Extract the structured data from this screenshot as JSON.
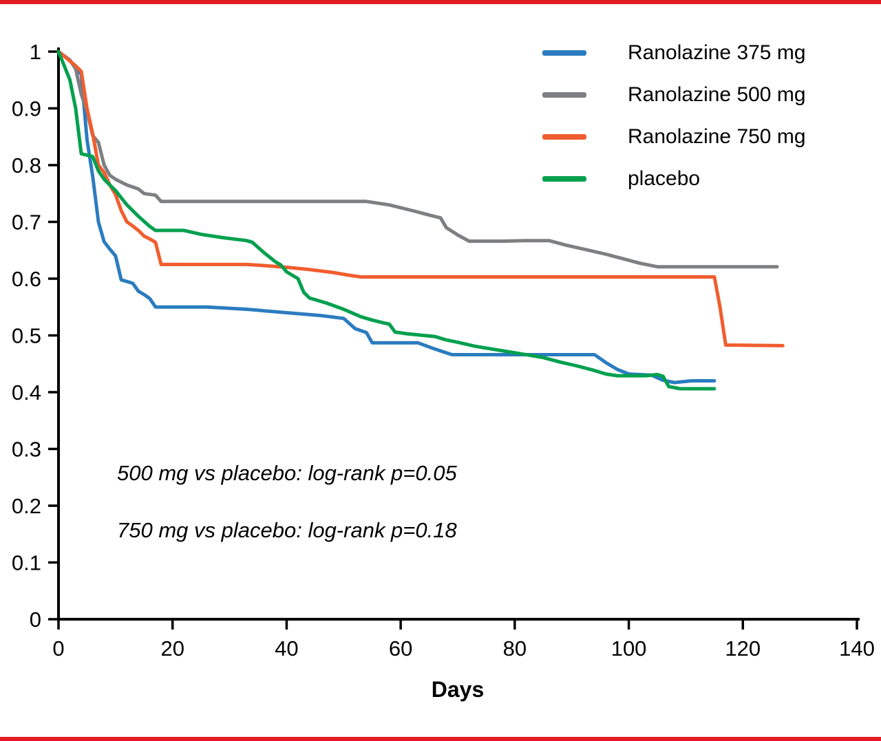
{
  "page": {
    "background": "#ffffff",
    "border_color": "#e31b23"
  },
  "chart_data": {
    "type": "line",
    "subtype": "kaplan-meier-survival-curves",
    "title": "",
    "xlabel": "Days",
    "ylabel": "",
    "xlim": [
      0,
      140
    ],
    "ylim": [
      0,
      1
    ],
    "grid": false,
    "legend_position": "top-right",
    "x_ticks": [
      0,
      20,
      40,
      60,
      80,
      100,
      120,
      140
    ],
    "x_tick_labels": [
      "0",
      "20",
      "40",
      "60",
      "80",
      "100",
      "120",
      "140"
    ],
    "y_ticks": [
      0,
      0.1,
      0.2,
      0.3,
      0.4,
      0.5,
      0.6,
      0.7,
      0.8,
      0.9,
      1
    ],
    "y_tick_labels": [
      "0",
      "0.1",
      "0.2",
      "0.3",
      "0.4",
      "0.5",
      "0.6",
      "0.7",
      "0.8",
      "0.9",
      "1"
    ],
    "axis_color": "#000000",
    "series": [
      {
        "name": "Ranolazine 375 mg",
        "color": "#2b7cbf",
        "points": [
          [
            0,
            1
          ],
          [
            2,
            0.985
          ],
          [
            3,
            0.97
          ],
          [
            4,
            0.96
          ],
          [
            5,
            0.845
          ],
          [
            6,
            0.78
          ],
          [
            7,
            0.7
          ],
          [
            8,
            0.665
          ],
          [
            9,
            0.652
          ],
          [
            10,
            0.64
          ],
          [
            11,
            0.598
          ],
          [
            13,
            0.592
          ],
          [
            14,
            0.578
          ],
          [
            15,
            0.572
          ],
          [
            16,
            0.565
          ],
          [
            17,
            0.55
          ],
          [
            26,
            0.55
          ],
          [
            33,
            0.546
          ],
          [
            40,
            0.54
          ],
          [
            46,
            0.535
          ],
          [
            50,
            0.53
          ],
          [
            52,
            0.512
          ],
          [
            54,
            0.505
          ],
          [
            55,
            0.487
          ],
          [
            63,
            0.487
          ],
          [
            66,
            0.476
          ],
          [
            69,
            0.466
          ],
          [
            80,
            0.466
          ],
          [
            94,
            0.466
          ],
          [
            96,
            0.452
          ],
          [
            98,
            0.44
          ],
          [
            100,
            0.432
          ],
          [
            104,
            0.43
          ],
          [
            106,
            0.421
          ],
          [
            108,
            0.417
          ],
          [
            111,
            0.42
          ],
          [
            115,
            0.42
          ]
        ]
      },
      {
        "name": "Ranolazine 500 mg",
        "color": "#7e7f83",
        "points": [
          [
            0,
            1
          ],
          [
            2,
            0.985
          ],
          [
            3,
            0.97
          ],
          [
            4,
            0.925
          ],
          [
            5,
            0.895
          ],
          [
            6,
            0.852
          ],
          [
            7,
            0.84
          ],
          [
            8,
            0.8
          ],
          [
            9,
            0.782
          ],
          [
            10,
            0.775
          ],
          [
            12,
            0.765
          ],
          [
            14,
            0.758
          ],
          [
            15,
            0.75
          ],
          [
            17,
            0.747
          ],
          [
            18,
            0.736
          ],
          [
            54,
            0.736
          ],
          [
            58,
            0.73
          ],
          [
            62,
            0.72
          ],
          [
            65,
            0.712
          ],
          [
            67,
            0.707
          ],
          [
            68,
            0.69
          ],
          [
            70,
            0.677
          ],
          [
            72,
            0.666
          ],
          [
            78,
            0.666
          ],
          [
            82,
            0.667
          ],
          [
            86,
            0.667
          ],
          [
            89,
            0.659
          ],
          [
            93,
            0.65
          ],
          [
            96,
            0.643
          ],
          [
            99,
            0.635
          ],
          [
            102,
            0.627
          ],
          [
            105,
            0.621
          ],
          [
            126,
            0.621
          ]
        ]
      },
      {
        "name": "Ranolazine 750 mg",
        "color": "#f15d2e",
        "points": [
          [
            0,
            1
          ],
          [
            3,
            0.975
          ],
          [
            4,
            0.965
          ],
          [
            5,
            0.9
          ],
          [
            6,
            0.855
          ],
          [
            7,
            0.8
          ],
          [
            8,
            0.787
          ],
          [
            9,
            0.765
          ],
          [
            10,
            0.748
          ],
          [
            11,
            0.72
          ],
          [
            12,
            0.7
          ],
          [
            13,
            0.693
          ],
          [
            14,
            0.685
          ],
          [
            15,
            0.675
          ],
          [
            16,
            0.67
          ],
          [
            17,
            0.664
          ],
          [
            18,
            0.625
          ],
          [
            33,
            0.625
          ],
          [
            36,
            0.623
          ],
          [
            40,
            0.62
          ],
          [
            44,
            0.616
          ],
          [
            48,
            0.611
          ],
          [
            51,
            0.606
          ],
          [
            53,
            0.603
          ],
          [
            115,
            0.603
          ],
          [
            116,
            0.55
          ],
          [
            117,
            0.483
          ],
          [
            127,
            0.482
          ]
        ]
      },
      {
        "name": "placebo",
        "color": "#00a04e",
        "points": [
          [
            0,
            1
          ],
          [
            1,
            0.975
          ],
          [
            2,
            0.95
          ],
          [
            3,
            0.9
          ],
          [
            4,
            0.82
          ],
          [
            6,
            0.815
          ],
          [
            7,
            0.79
          ],
          [
            8,
            0.775
          ],
          [
            9,
            0.765
          ],
          [
            10,
            0.755
          ],
          [
            12,
            0.73
          ],
          [
            14,
            0.71
          ],
          [
            16,
            0.692
          ],
          [
            17,
            0.685
          ],
          [
            22,
            0.685
          ],
          [
            25,
            0.678
          ],
          [
            29,
            0.672
          ],
          [
            33,
            0.667
          ],
          [
            34,
            0.664
          ],
          [
            36,
            0.646
          ],
          [
            38,
            0.63
          ],
          [
            39,
            0.624
          ],
          [
            40,
            0.612
          ],
          [
            42,
            0.6
          ],
          [
            43,
            0.576
          ],
          [
            44,
            0.566
          ],
          [
            47,
            0.557
          ],
          [
            50,
            0.546
          ],
          [
            53,
            0.533
          ],
          [
            55,
            0.527
          ],
          [
            57,
            0.522
          ],
          [
            58,
            0.52
          ],
          [
            59,
            0.506
          ],
          [
            61,
            0.503
          ],
          [
            64,
            0.5
          ],
          [
            66,
            0.498
          ],
          [
            68,
            0.492
          ],
          [
            70,
            0.488
          ],
          [
            73,
            0.481
          ],
          [
            76,
            0.476
          ],
          [
            79,
            0.471
          ],
          [
            82,
            0.466
          ],
          [
            85,
            0.461
          ],
          [
            88,
            0.453
          ],
          [
            91,
            0.446
          ],
          [
            94,
            0.438
          ],
          [
            96,
            0.432
          ],
          [
            98,
            0.429
          ],
          [
            103,
            0.429
          ],
          [
            105,
            0.431
          ],
          [
            106,
            0.428
          ],
          [
            107,
            0.41
          ],
          [
            109,
            0.406
          ],
          [
            115,
            0.406
          ]
        ]
      }
    ],
    "annotations": [
      {
        "text": "500 mg vs placebo: log-rank p=0.05"
      },
      {
        "text": "750 mg vs placebo: log-rank p=0.18"
      }
    ]
  }
}
